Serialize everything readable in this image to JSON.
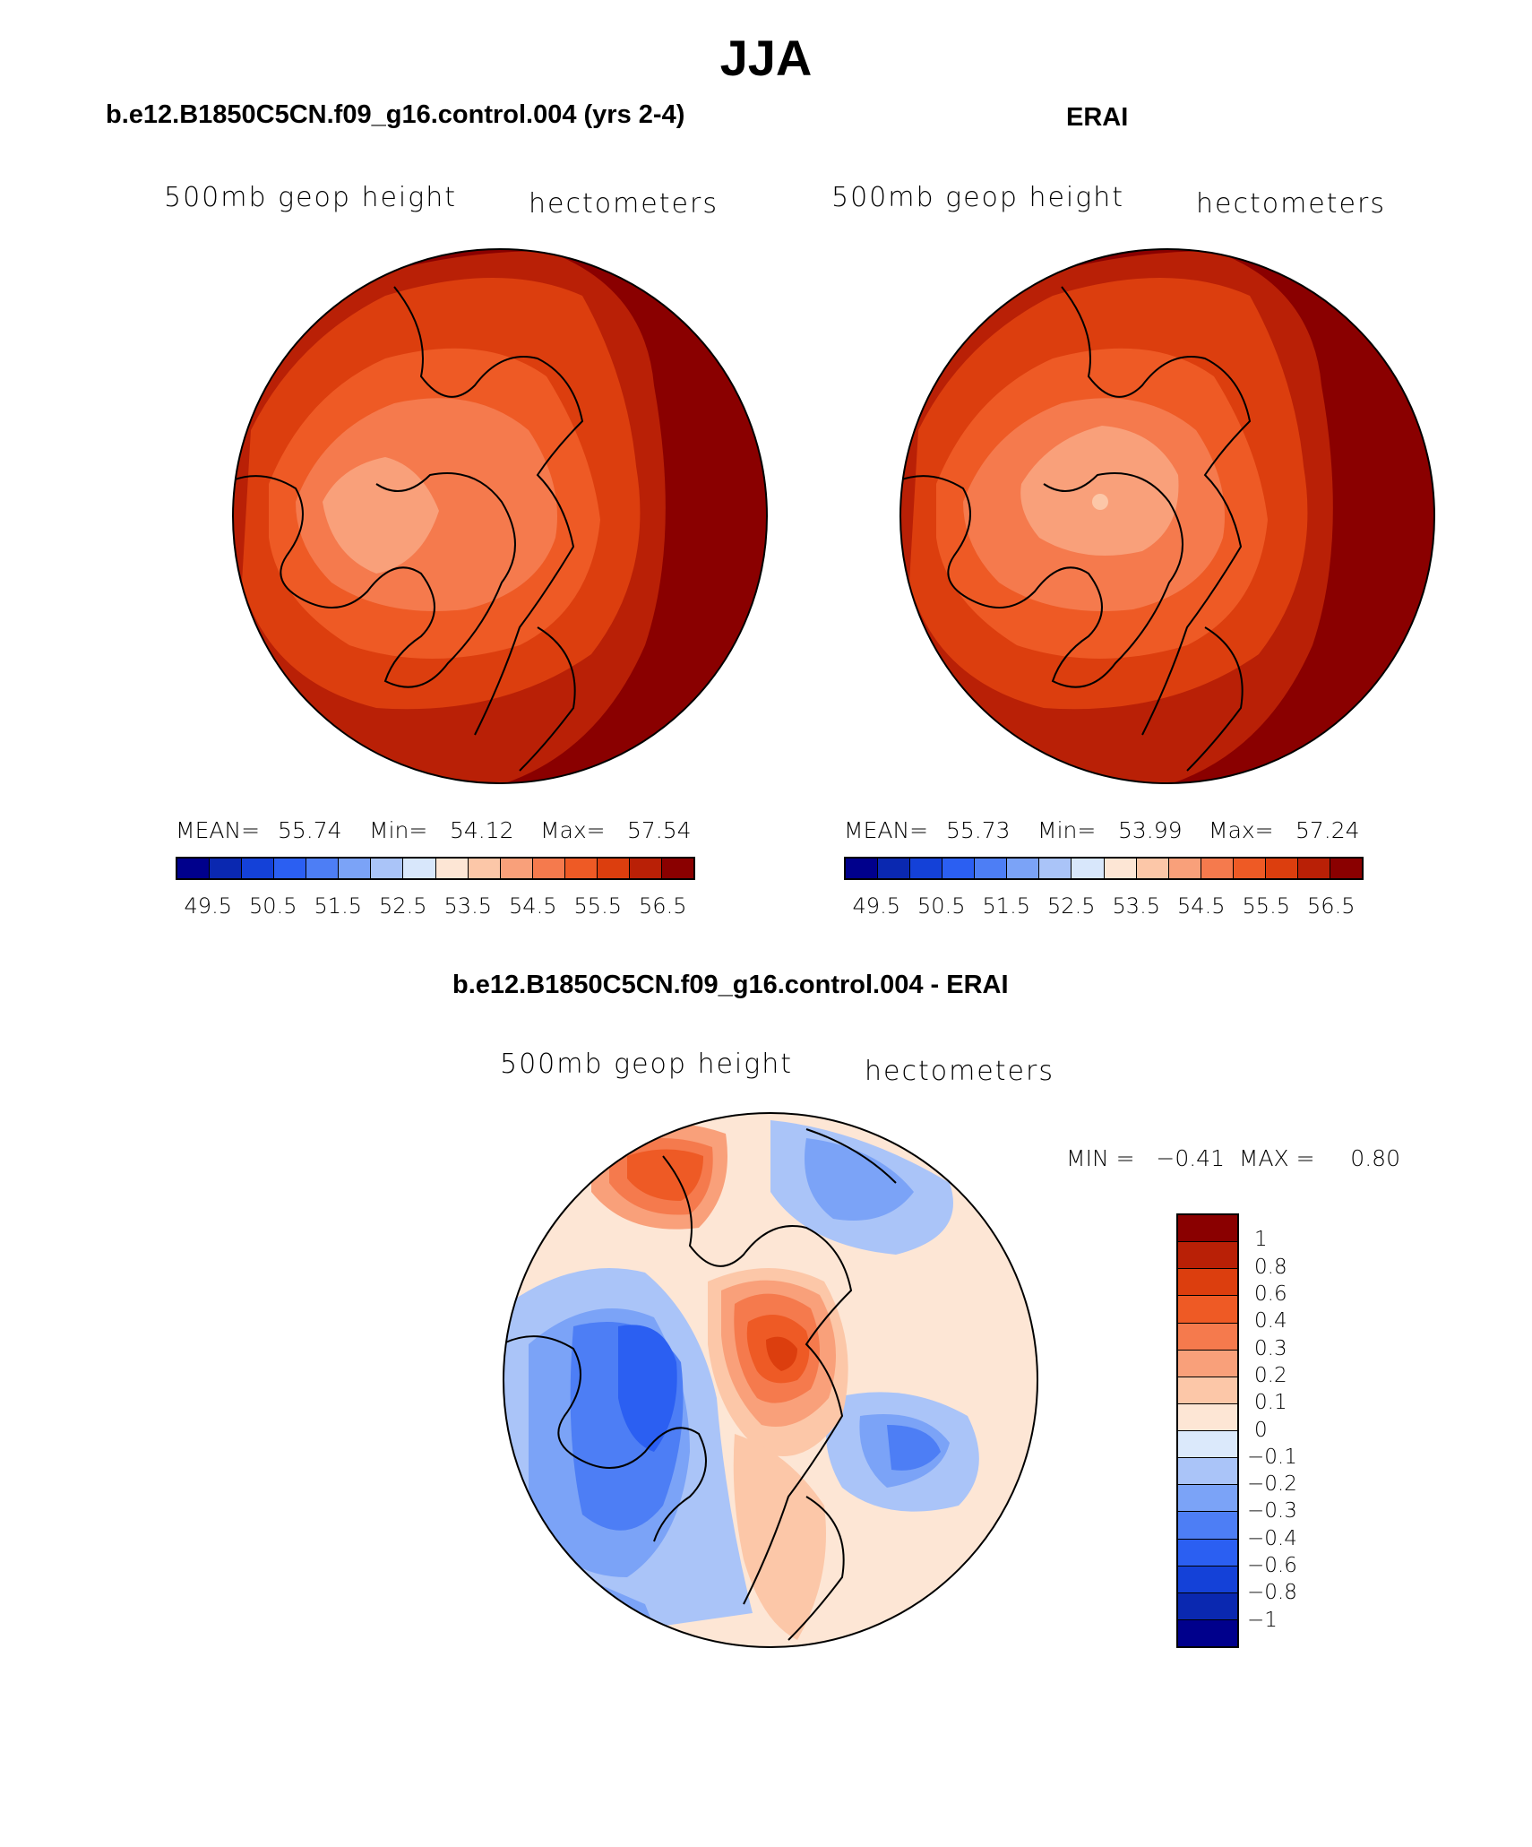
{
  "title": "JJA",
  "panels": [
    {
      "title": "b.e12.B1850C5CN.f09_g16.control.004 (yrs 2-4)",
      "var_label": "500mb geop height",
      "units": "hectometers",
      "mean_label": "MEAN=",
      "mean": "55.74",
      "min_label": "Min=",
      "min": "54.12",
      "max_label": "Max=",
      "max": "57.54"
    },
    {
      "title": "ERAI",
      "var_label": "500mb geop height",
      "units": "hectometers",
      "mean_label": "MEAN=",
      "mean": "55.73",
      "min_label": "Min=",
      "min": "53.99",
      "max_label": "Max=",
      "max": "57.24"
    }
  ],
  "colorbar": {
    "colors": [
      "#00008c",
      "#0a28b0",
      "#1441d8",
      "#2b5ff2",
      "#4d7ef5",
      "#7ba3f7",
      "#aac4f8",
      "#d8e7fb",
      "#fde6d5",
      "#fcc7a8",
      "#f9a07a",
      "#f57a4d",
      "#ee5a25",
      "#dc3e0e",
      "#b92006",
      "#8a0000"
    ],
    "labels": [
      "49.5",
      "50.5",
      "51.5",
      "52.5",
      "53.5",
      "54.5",
      "55.5",
      "56.5"
    ]
  },
  "diff": {
    "title": "b.e12.B1850C5CN.f09_g16.control.004 - ERAI",
    "var_label": "500mb geop height",
    "units": "hectometers",
    "minmax": "MIN =   −0.41  MAX =     0.80",
    "colors": [
      "#8a0000",
      "#b92006",
      "#dc3e0e",
      "#ee5a25",
      "#f57a4d",
      "#f9a07a",
      "#fcc7a8",
      "#fde6d5",
      "#dbe9fb",
      "#aac4f8",
      "#7ba3f7",
      "#4d7ef5",
      "#2b5ff2",
      "#1441d8",
      "#0a28b0",
      "#00008c"
    ],
    "labels": [
      "1",
      "0.8",
      "0.6",
      "0.4",
      "0.3",
      "0.2",
      "0.1",
      "0",
      "−0.1",
      "−0.2",
      "−0.3",
      "−0.4",
      "−0.6",
      "−0.8",
      "−1"
    ]
  }
}
